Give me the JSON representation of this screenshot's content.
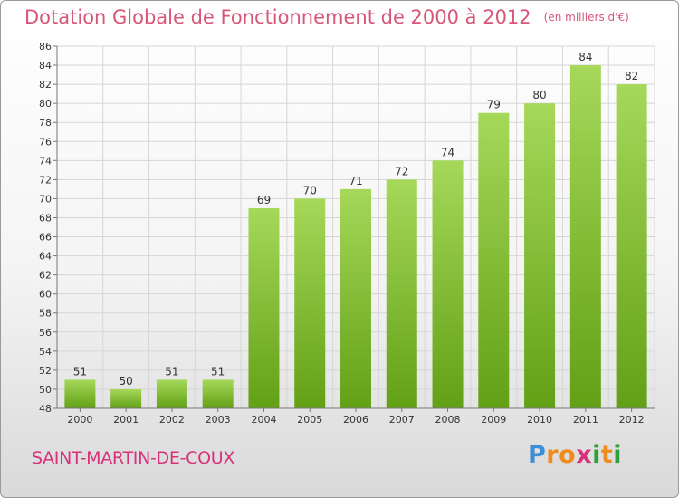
{
  "header": {
    "title": "Dotation Globale de Fonctionnement de 2000 à 2012",
    "subtitle": "(en milliers d'€)"
  },
  "footer": {
    "location": "SAINT-MARTIN-DE-COUX",
    "brand_letters": [
      "P",
      "r",
      "o",
      "x",
      "i",
      "t",
      "i"
    ],
    "brand_colors": [
      "#3a8fd6",
      "#f08c1e",
      "#f08c1e",
      "#d8327a",
      "#2e9f3a",
      "#f08c1e",
      "#2e9f3a"
    ]
  },
  "colors": {
    "bar_top": "#a6d85a",
    "bar_bottom": "#62a016",
    "grid": "#d6d6d6",
    "axis": "#777777",
    "text": "#333333"
  },
  "chart_data": {
    "type": "bar",
    "categories": [
      "2000",
      "2001",
      "2002",
      "2003",
      "2004",
      "2005",
      "2006",
      "2007",
      "2008",
      "2009",
      "2010",
      "2011",
      "2012"
    ],
    "values": [
      51,
      50,
      51,
      51,
      69,
      70,
      71,
      72,
      74,
      79,
      80,
      84,
      82
    ],
    "title": "Dotation Globale de Fonctionnement de 2000 à 2012",
    "subtitle": "(en milliers d'€)",
    "ylim": [
      48,
      86
    ],
    "ytick_step": 2,
    "grid": true,
    "data_labels": true
  }
}
